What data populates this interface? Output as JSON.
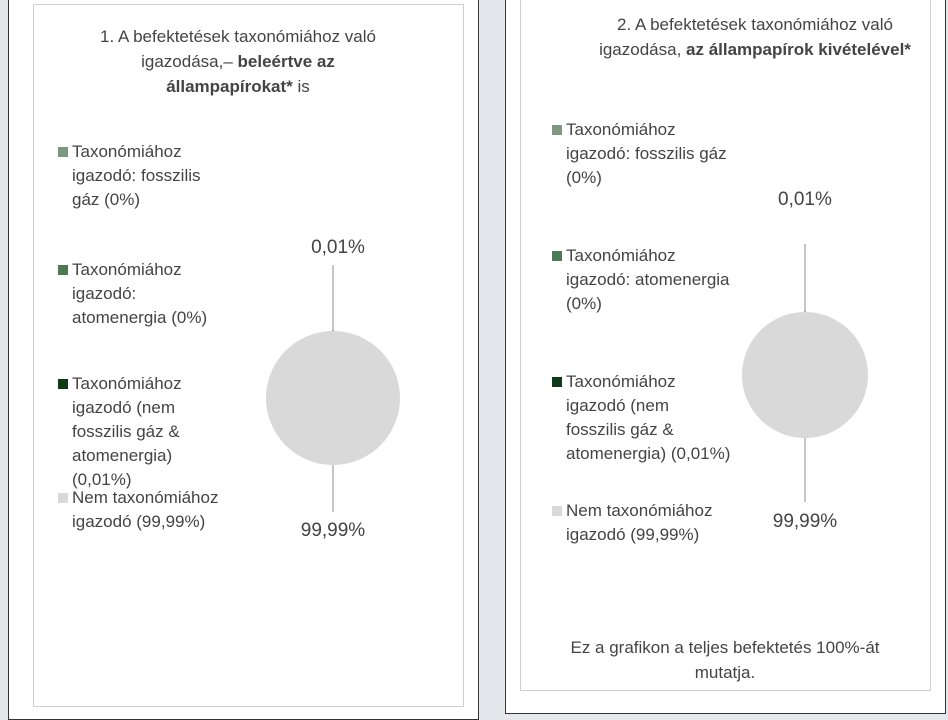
{
  "chart_data": [
    {
      "type": "pie",
      "title": [
        "1. A befektetések taxonómiához való igazodása,– ",
        "beleértve az állampapírokat*",
        " is"
      ],
      "categories": [
        "Taxonómiához igazodó: fosszilis gáz (0%)",
        "Taxonómiához igazodó: atomenergia (0%)",
        "Taxonómiához igazodó (nem fosszilis gáz & atomenergia) (0,01%)",
        "Nem taxonómiához igazodó (99,99%)"
      ],
      "values": [
        0,
        0,
        0.01,
        99.99
      ],
      "value_labels": [
        null,
        null,
        "0,01%",
        "99,99%"
      ],
      "colors": [
        "#7d9a80",
        "#4e7a52",
        "#0f3b18",
        "#d9d9d9"
      ]
    },
    {
      "type": "pie",
      "title": [
        "2. A befektetések taxonómiához való igazodása, ",
        "az állampapírok kivételével*"
      ],
      "categories": [
        "Taxonómiához igazodó: fosszilis gáz (0%)",
        "Taxonómiához igazodó: atomenergia (0%)",
        "Taxonómiához igazodó (nem fosszilis gáz & atomenergia) (0,01%)",
        "Nem taxonómiához igazodó (99,99%)"
      ],
      "values": [
        0,
        0,
        0.01,
        99.99
      ],
      "value_labels": [
        null,
        null,
        "0,01%",
        "99,99%"
      ],
      "colors": [
        "#7d9a80",
        "#4e7a52",
        "#0f3b18",
        "#d9d9d9"
      ],
      "note": "Ez a grafikon a teljes befektetés 100%-át mutatja."
    }
  ]
}
